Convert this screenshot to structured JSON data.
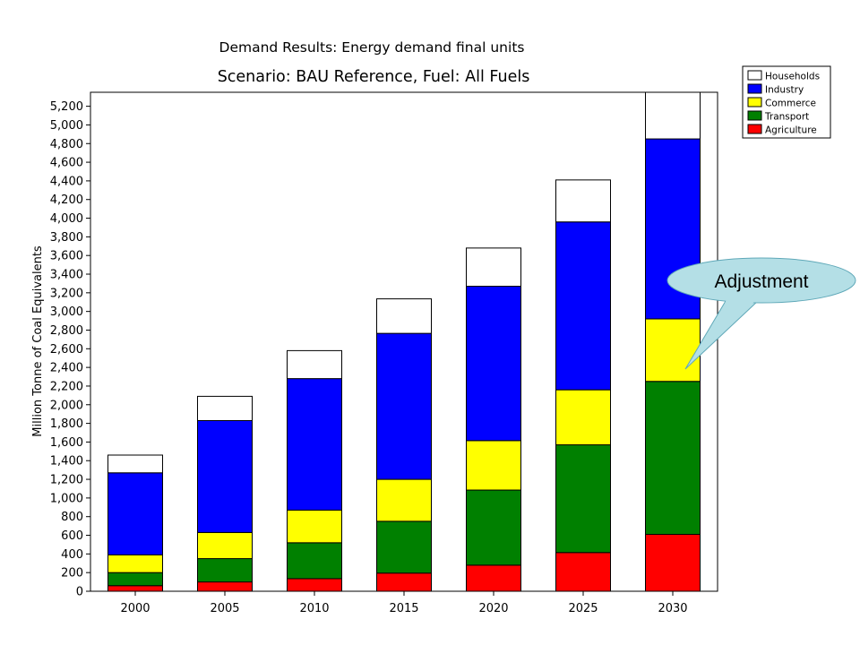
{
  "chart_data": {
    "type": "bar",
    "stacked": true,
    "title": "Demand Results: Energy demand final units",
    "subtitle": "Scenario: BAU Reference,  Fuel: All Fuels",
    "xlabel": "",
    "ylabel": "Million Tonne of Coal Equivalents",
    "ylim": [
      0,
      5350
    ],
    "yticks": [
      0,
      200,
      400,
      600,
      800,
      1000,
      1200,
      1400,
      1600,
      1800,
      2000,
      2200,
      2400,
      2600,
      2800,
      3000,
      3200,
      3400,
      3600,
      3800,
      4000,
      4200,
      4400,
      4600,
      4800,
      5000,
      5200
    ],
    "ytick_labels": [
      "0",
      "200",
      "400",
      "600",
      "800",
      "1,000",
      "1,200",
      "1,400",
      "1,600",
      "1,800",
      "2,000",
      "2,200",
      "2,400",
      "2,600",
      "2,800",
      "3,000",
      "3,200",
      "3,400",
      "3,600",
      "3,800",
      "4,000",
      "4,200",
      "4,400",
      "4,600",
      "4,800",
      "5,000",
      "5,200"
    ],
    "categories": [
      "2000",
      "2005",
      "2010",
      "2015",
      "2020",
      "2025",
      "2030"
    ],
    "series": [
      {
        "name": "Agriculture",
        "color": "#ff0000",
        "values": [
          60,
          100,
          135,
          195,
          280,
          415,
          610
        ]
      },
      {
        "name": "Transport",
        "color": "#008000",
        "values": [
          140,
          250,
          385,
          555,
          805,
          1155,
          1640
        ]
      },
      {
        "name": "Commerce",
        "color": "#ffff00",
        "values": [
          190,
          280,
          350,
          450,
          530,
          590,
          670
        ]
      },
      {
        "name": "Industry",
        "color": "#0000ff",
        "values": [
          880,
          1200,
          1410,
          1565,
          1655,
          1800,
          1930
        ]
      },
      {
        "name": "Households",
        "color": "#ffffff",
        "values": [
          190,
          260,
          300,
          370,
          410,
          450,
          500
        ]
      }
    ],
    "legend_order": [
      "Households",
      "Industry",
      "Commerce",
      "Transport",
      "Agriculture"
    ],
    "legend_position": "top-right",
    "grid": false
  },
  "annotation": {
    "text": "Adjustment",
    "fill": "#b4dfe6",
    "target_category": "2030",
    "target_value": 2250
  }
}
